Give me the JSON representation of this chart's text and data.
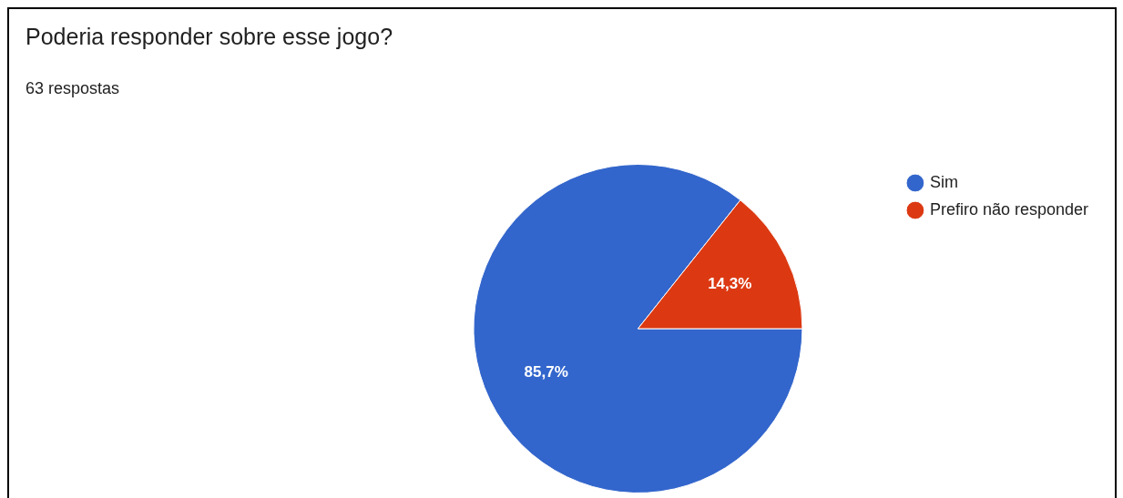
{
  "chart_data": {
    "type": "pie",
    "title": "Poderia responder sobre esse jogo?",
    "subtitle": "63 respostas",
    "categories": [
      "Sim",
      "Prefiro não responder"
    ],
    "values": [
      85.7,
      14.3
    ],
    "colors": [
      "#3366cc",
      "#dc3912"
    ],
    "value_labels": [
      "85,7%",
      "14,3%"
    ],
    "legend": "right"
  }
}
